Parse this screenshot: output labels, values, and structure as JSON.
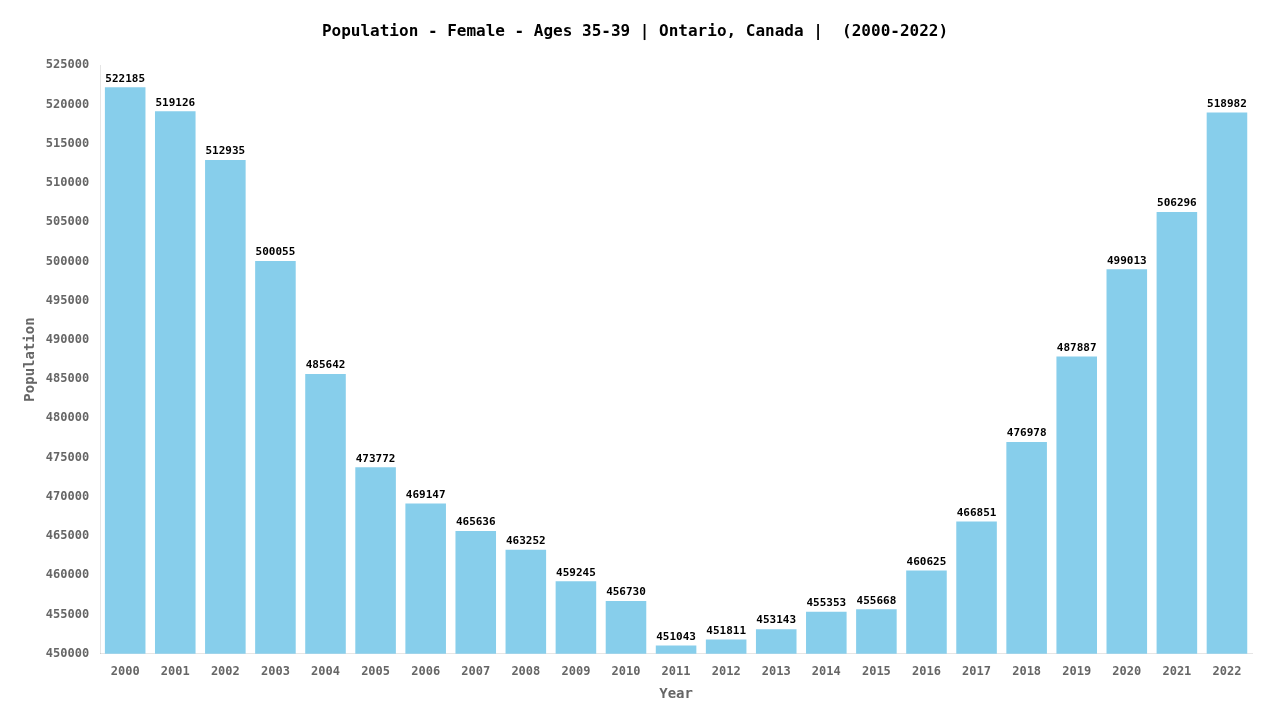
{
  "chart_data": {
    "type": "bar",
    "title": "Population - Female - Ages 35-39 | Ontario, Canada |  (2000-2022)",
    "x_label": "Year",
    "y_label": "Population",
    "categories": [
      "2000",
      "2001",
      "2002",
      "2003",
      "2004",
      "2005",
      "2006",
      "2007",
      "2008",
      "2009",
      "2010",
      "2011",
      "2012",
      "2013",
      "2014",
      "2015",
      "2016",
      "2017",
      "2018",
      "2019",
      "2020",
      "2021",
      "2022"
    ],
    "values": [
      522185,
      519126,
      512935,
      500055,
      485642,
      473772,
      469147,
      465636,
      463252,
      459245,
      456730,
      451043,
      451811,
      453143,
      455353,
      455668,
      460625,
      466851,
      476978,
      487887,
      499013,
      506296,
      518982
    ],
    "color": "#87CEEB",
    "ylim": [
      450000,
      525000
    ],
    "yticks": [
      450000,
      455000,
      460000,
      465000,
      470000,
      475000,
      480000,
      485000,
      490000,
      495000,
      500000,
      505000,
      510000,
      515000,
      520000,
      525000
    ],
    "grid": false,
    "data_labels": true
  }
}
